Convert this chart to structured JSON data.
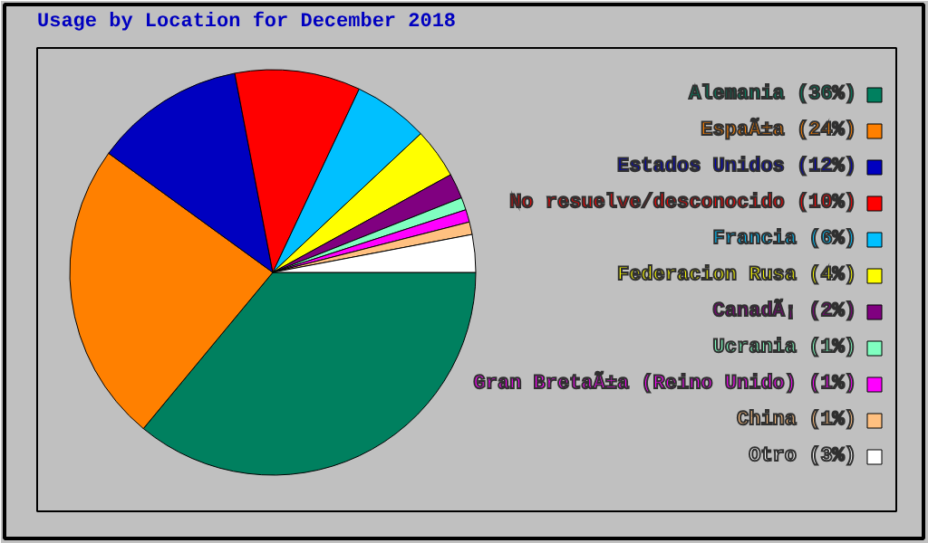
{
  "chart_data": {
    "type": "pie",
    "title": "Usage by Location for December 2018",
    "categories": [
      "Alemania (36%)",
      "EspaÃ±a (24%)",
      "Estados Unidos (12%)",
      "No resuelve/desconocido (10%)",
      "Francia (6%)",
      "Federacion Rusa (4%)",
      "CanadÃ¡ (2%)",
      "Ucrania (1%)",
      "Gran BretaÃ±a (Reino Unido) (1%)",
      "China (1%)",
      "Otro (3%)"
    ],
    "values": [
      36,
      24,
      12,
      10,
      6,
      4,
      2,
      1,
      1,
      1,
      3
    ],
    "colors": [
      "#00805f",
      "#ff8000",
      "#0000c0",
      "#ff0000",
      "#00c0ff",
      "#ffff00",
      "#800080",
      "#80ffc0",
      "#ff00ff",
      "#ffc080",
      "#ffffff"
    ],
    "legend": "right"
  }
}
